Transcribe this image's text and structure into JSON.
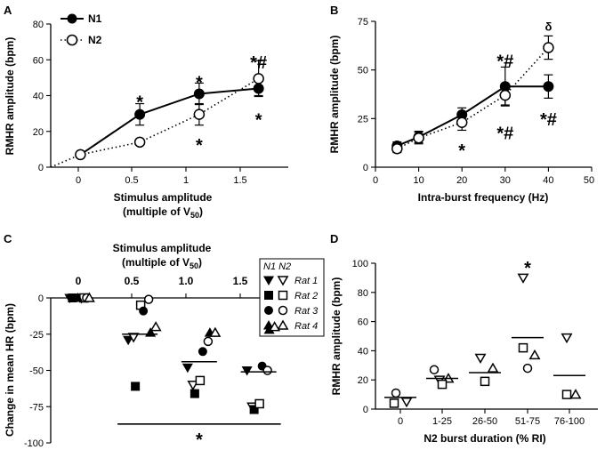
{
  "chart_data": [
    {
      "panel": "A",
      "type": "line",
      "xlabel": "Stimulus amplitude",
      "xlabel2_pre": "(multiple of V",
      "xlabel2_sub": "50",
      "xlabel2_post": ")",
      "ylabel": "RMHR amplitude (bpm)",
      "xlim": [
        -0.25,
        1.75
      ],
      "ylim": [
        0,
        80
      ],
      "xticks": [
        0,
        0.5,
        1,
        1.5
      ],
      "yticks": [
        0,
        20,
        40,
        60,
        80
      ],
      "series": [
        {
          "name": "N1",
          "style": "solid",
          "marker": "filled-circle",
          "x": [
            0,
            0.5,
            1,
            1.5
          ],
          "y": [
            7,
            29.5,
            41,
            44
          ],
          "err": [
            0,
            6,
            6,
            4
          ]
        },
        {
          "name": "N2",
          "style": "dotted",
          "marker": "open-circle",
          "x": [
            0,
            0.5,
            1,
            1.5
          ],
          "y": [
            7,
            14,
            29.5,
            49.5
          ],
          "err": [
            0,
            0,
            6,
            10
          ]
        }
      ],
      "annotations": [
        {
          "text": "*",
          "x": 0.5,
          "y": 39,
          "font": "star"
        },
        {
          "text": "*",
          "x": 1,
          "y": 50,
          "font": "star"
        },
        {
          "text": "*",
          "x": 1,
          "y": 15,
          "font": "star"
        },
        {
          "text": "*#",
          "x": 1.5,
          "y": 61,
          "font": "star"
        },
        {
          "text": "*",
          "x": 1.5,
          "y": 29,
          "font": "star"
        }
      ]
    },
    {
      "panel": "B",
      "type": "line",
      "xlabel": "Intra-burst frequency (Hz)",
      "ylabel": "RMHR amplitude (bpm)",
      "xlim": [
        0,
        50
      ],
      "ylim": [
        0,
        75
      ],
      "xticks": [
        0,
        10,
        20,
        30,
        40,
        50
      ],
      "yticks": [
        0,
        25,
        50,
        75
      ],
      "series": [
        {
          "name": "N1",
          "style": "solid",
          "marker": "filled-circle",
          "x": [
            5,
            10,
            20,
            30,
            40
          ],
          "y": [
            11,
            15.5,
            27,
            41.5,
            41.5
          ],
          "err": [
            2,
            3,
            3.5,
            10,
            6
          ]
        },
        {
          "name": "N2",
          "style": "dotted",
          "marker": "open-circle",
          "x": [
            5,
            10,
            20,
            30,
            40
          ],
          "y": [
            9.5,
            15,
            23,
            37,
            61.5
          ],
          "err": [
            2,
            3,
            4,
            5,
            6
          ]
        }
      ],
      "annotations": [
        {
          "text": "*#",
          "x": 30,
          "y": 57,
          "font": "star"
        },
        {
          "text": "*#",
          "x": 30,
          "y": 20,
          "font": "star"
        },
        {
          "text": "*",
          "x": 20,
          "y": 11,
          "font": "star"
        },
        {
          "text": "δ",
          "x": 40,
          "y": 72,
          "font": "bold"
        },
        {
          "text": "*#",
          "x": 40,
          "y": 27,
          "font": "star"
        }
      ]
    },
    {
      "panel": "C",
      "type": "scatter",
      "title": "Stimulus amplitude",
      "title2_pre": "(multiple of V",
      "title2_sub": "50",
      "title2_post": ")",
      "ylabel": "Change in mean HR (bpm)",
      "xlim": [
        -0.25,
        1.75
      ],
      "ylim": [
        -100,
        0
      ],
      "xticks": [
        0,
        0.5,
        1,
        1.5
      ],
      "xticklabels": [
        "0",
        "0.5",
        "1.0",
        "1.5"
      ],
      "yticks": [
        0,
        -25,
        -50,
        -75,
        -100
      ],
      "legend_header": "N1 N2",
      "legend_entries": [
        "Rat 1",
        "Rat 2",
        "Rat 3",
        "Rat 4"
      ],
      "legend_location": "top-right",
      "rats": [
        {
          "name": "Rat 1",
          "N1_marker": "filled-triangle-down",
          "N2_marker": "open-triangle-down",
          "N1": [
            0,
            -29,
            -48,
            -50
          ],
          "N2": [
            0,
            -27,
            -60,
            -75
          ]
        },
        {
          "name": "Rat 2",
          "N1_marker": "filled-square",
          "N2_marker": "open-square",
          "N1": [
            0,
            -61,
            -66,
            -77
          ],
          "N2": [
            0,
            -5,
            -57,
            -73
          ]
        },
        {
          "name": "Rat 3",
          "N1_marker": "filled-circle",
          "N2_marker": "open-circle",
          "N1": [
            0,
            -9,
            -37,
            -47
          ],
          "N2": [
            0,
            -1,
            -30,
            -50
          ]
        },
        {
          "name": "Rat 4",
          "N1_marker": "filled-triangle-up",
          "N2_marker": "open-triangle-up",
          "N1": [
            0,
            -24,
            -24,
            -22
          ],
          "N2": [
            0,
            -20,
            -24,
            -20
          ]
        }
      ],
      "means": [
        0,
        -25,
        -44,
        -51
      ],
      "significance_bar": {
        "from": 0.5,
        "to": 1.5,
        "y": -87,
        "text": "*"
      }
    },
    {
      "panel": "D",
      "type": "scatter",
      "xlabel": "N2 burst duration (% RI)",
      "ylabel": "RMHR amplitude (bpm)",
      "ylim": [
        0,
        100
      ],
      "yticks": [
        0,
        20,
        40,
        60,
        80,
        100
      ],
      "categories": [
        "0",
        "1-25",
        "26-50",
        "51-75",
        "76-100"
      ],
      "points": [
        {
          "cat": 0,
          "y": 11,
          "marker": "open-circle"
        },
        {
          "cat": 0,
          "y": 5,
          "marker": "open-triangle-down"
        },
        {
          "cat": 0,
          "y": 4,
          "marker": "open-square"
        },
        {
          "cat": 1,
          "y": 27,
          "marker": "open-circle"
        },
        {
          "cat": 1,
          "y": 20,
          "marker": "open-triangle-down"
        },
        {
          "cat": 1,
          "y": 21,
          "marker": "open-triangle-up"
        },
        {
          "cat": 1,
          "y": 17,
          "marker": "open-square"
        },
        {
          "cat": 2,
          "y": 35,
          "marker": "open-triangle-down"
        },
        {
          "cat": 2,
          "y": 28,
          "marker": "open-triangle-up"
        },
        {
          "cat": 2,
          "y": 19,
          "marker": "open-square"
        },
        {
          "cat": 3,
          "y": 90,
          "marker": "open-triangle-down"
        },
        {
          "cat": 3,
          "y": 42,
          "marker": "open-square"
        },
        {
          "cat": 3,
          "y": 37,
          "marker": "open-triangle-up"
        },
        {
          "cat": 3,
          "y": 28,
          "marker": "open-circle"
        },
        {
          "cat": 4,
          "y": 49,
          "marker": "open-triangle-down"
        },
        {
          "cat": 4,
          "y": 10,
          "marker": "open-square"
        },
        {
          "cat": 4,
          "y": 10,
          "marker": "open-triangle-up"
        }
      ],
      "means": [
        8,
        21,
        25,
        49,
        23
      ],
      "annotations": [
        {
          "text": "*",
          "cat": 3,
          "y": 100,
          "font": "star"
        }
      ]
    }
  ],
  "panel_labels": [
    "A",
    "B",
    "C",
    "D"
  ],
  "legend_A": {
    "n1": "N1",
    "n2": "N2"
  }
}
